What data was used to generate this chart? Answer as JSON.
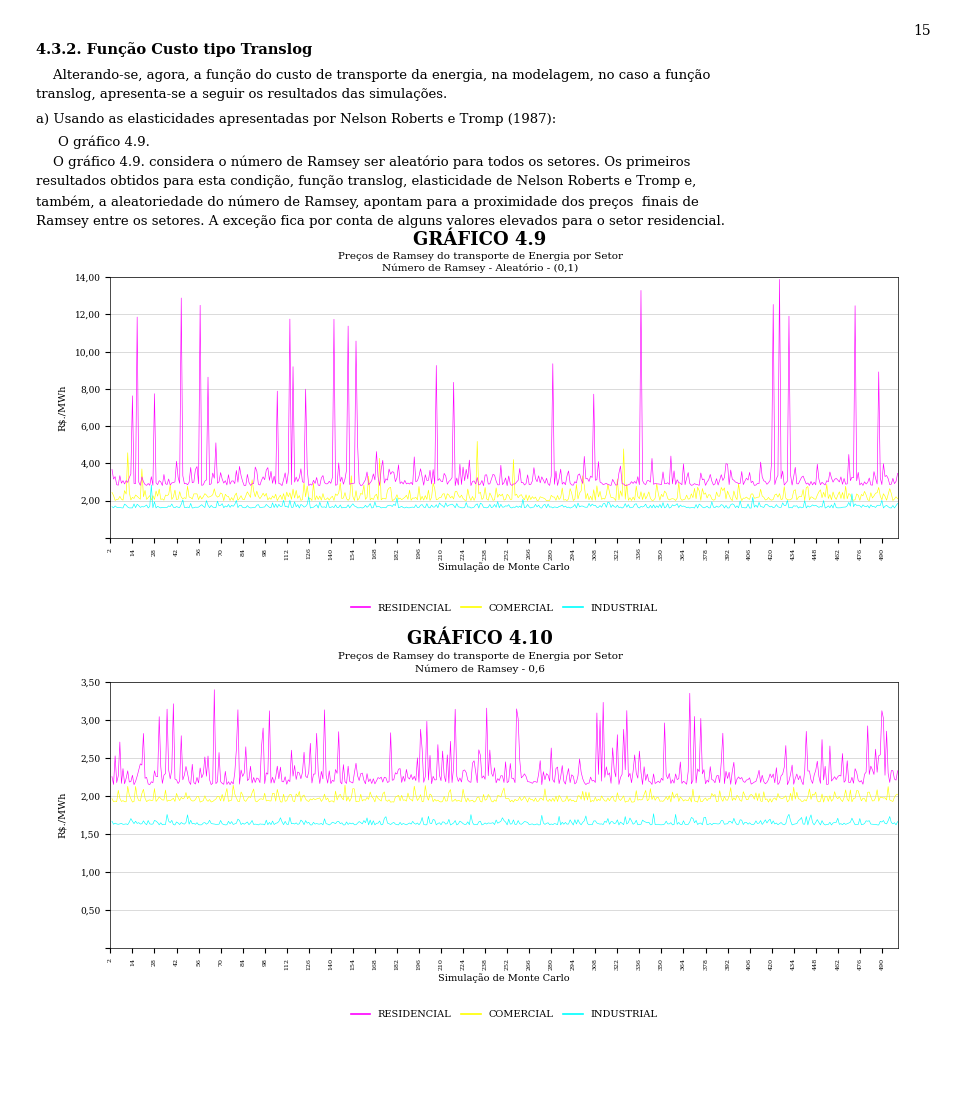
{
  "page_number": "15",
  "section_title": "4.3.2. Função Custo tipo Translog",
  "para1_line1": "    Alterando-se, agora, a função do custo de transporte da energia, na modelagem, no caso a função",
  "para1_line2": "translog, apresenta-se a seguir os resultados das simulações.",
  "para2": "a) Usando as elasticidades apresentadas por Nelson Roberts e Tromp (1987):",
  "para3_line1": "    O gráfico 4.9. considera o número de Ramsey ser aleatório para todos os setores. Os primeiros",
  "para3_line2": "resultados obtidos para esta condição, função translog, elasticidade de Nelson Roberts e Tromp e,",
  "para3_line3": "também, a aleatoriedade do número de Ramsey, apontam para a proximidade dos preços  finais de",
  "para3_line4": "Ramsey entre os setores. A exceção fica por conta de alguns valores elevados para o setor residencial.",
  "grafico49_title": "GRÁFICO 4.9",
  "grafico49_subtitle1": "Preços de Ramsey do transporte de Energia por Setor",
  "grafico49_subtitle2": "Número de Ramsey - Aleatório - (0,1)",
  "grafico49_ylabel": "R$./MWh",
  "grafico49_xlabel": "Simulação de Monte Carlo",
  "grafico49_ylim": [
    0,
    14.0
  ],
  "grafico49_yticks": [
    0,
    2.0,
    4.0,
    6.0,
    8.0,
    10.0,
    12.0,
    14.0
  ],
  "grafico49_ytick_labels": [
    " ",
    "2,00",
    "4,00",
    "6,00",
    "8,00",
    "10,00",
    "12,00",
    "14,00"
  ],
  "grafico410_title": "GRÁFICO 4.10",
  "grafico410_subtitle1": "Preços de Ramsey do transporte de Energia por Setor",
  "grafico410_subtitle2": "Número de Ramsey - 0,6",
  "grafico410_ylabel": "R$./MWh",
  "grafico410_xlabel": "Simulação de Monte Carlo",
  "grafico410_ylim": [
    0,
    3.5
  ],
  "grafico410_yticks": [
    0,
    0.5,
    1.0,
    1.5,
    2.0,
    2.5,
    3.0,
    3.5
  ],
  "grafico410_ytick_labels": [
    " ",
    "0,50",
    "1,00",
    "1,50",
    "2,00",
    "2,50",
    "3,00",
    "3,50"
  ],
  "color_residencial": "#FF00FF",
  "color_comercial": "#FFFF00",
  "color_industrial": "#00FFFF",
  "legend_labels": [
    "RESIDENCIAL",
    "COMERCIAL",
    "INDUSTRIAL"
  ],
  "n_simulations": 500,
  "background_color": "#ffffff",
  "chart_bg": "#ffffff",
  "grid_color": "#cccccc"
}
